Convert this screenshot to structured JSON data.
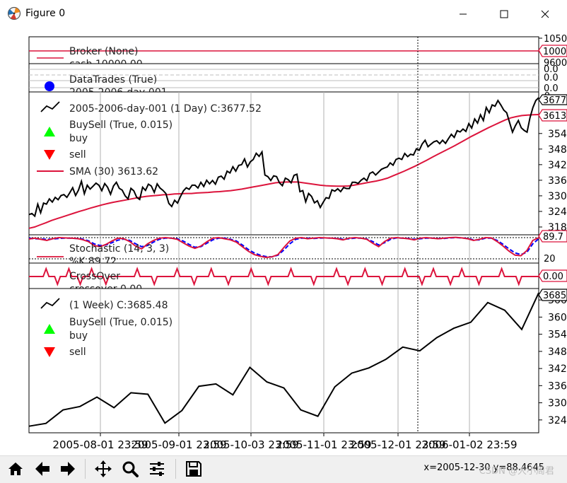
{
  "window": {
    "title": "Figure 0",
    "minimize_icon": "minimize-icon",
    "maximize_icon": "maximize-icon",
    "close_icon": "close-icon",
    "app_icon": "matplotlib-icon"
  },
  "toolbar": {
    "buttons": [
      {
        "name": "home-button",
        "icon": "home-icon"
      },
      {
        "name": "back-button",
        "icon": "arrow-left-icon"
      },
      {
        "name": "forward-button",
        "icon": "arrow-right-icon"
      },
      {
        "name": "pan-button",
        "icon": "move-icon"
      },
      {
        "name": "zoom-button",
        "icon": "magnifier-icon"
      },
      {
        "name": "configure-subplots-button",
        "icon": "sliders-icon"
      },
      {
        "name": "save-button",
        "icon": "floppy-disk-icon"
      }
    ],
    "coords": "x=2005-12-30  y=88.4645",
    "watermark": "CSDN @大小周君"
  },
  "x_axis": {
    "tick_labels": [
      "2005-08-01 23:59",
      "2005-09-01 23:59",
      "2005-10-03 23:59",
      "2005-11-01 23:59",
      "2005-12-01 23:59",
      "2006-01-02 23:59"
    ],
    "cursor_date": "2005-12-30"
  },
  "colors": {
    "price": "#000000",
    "sma": "#dc143c",
    "stoch_k": "#dc143c",
    "stoch_d": "#0000ff",
    "crossover": "#dc143c",
    "buy_marker": "#00ff00",
    "sell_marker": "#ff0000",
    "trades_marker": "#0000ff",
    "grid": "#b0b0b0"
  },
  "chart_data": [
    {
      "type": "line",
      "panel": "broker",
      "legend": [
        "Broker (None)",
        "cash 10000.00"
      ],
      "series": [
        {
          "name": "cash",
          "values_constant": 10000.0
        }
      ],
      "right_label": "10000",
      "y_tick_labels": [
        "1050",
        "9600"
      ]
    },
    {
      "type": "scatter",
      "panel": "trades",
      "legend": [
        "DataTrades (True)",
        "2005-2006-day-001"
      ],
      "right_tick_labels": [
        "0.0",
        "0.0",
        "0.0",
        "-0"
      ]
    },
    {
      "type": "line",
      "panel": "price_day",
      "legend_price": "2005-2006-day-001 (1 Day) C:3677.52",
      "legend_buysell": "BuySell (True, 0.015)",
      "legend_buy": "buy",
      "legend_sell": "sell",
      "legend_sma": "SMA (30) 3613.62",
      "last_price_label": "3677",
      "last_sma_label": "3613",
      "y_tick_labels": [
        "354",
        "348",
        "342",
        "336",
        "330",
        "324",
        "318"
      ],
      "ylim": [
        3150,
        3700
      ],
      "price_values": [
        3228,
        3232,
        3222,
        3268,
        3235,
        3272,
        3268,
        3288,
        3276,
        3294,
        3285,
        3301,
        3305,
        3294,
        3312,
        3331,
        3301,
        3322,
        3356,
        3308,
        3341,
        3326,
        3337,
        3349,
        3341,
        3320,
        3347,
        3333,
        3306,
        3338,
        3352,
        3329,
        3322,
        3300,
        3288,
        3329,
        3319,
        3294,
        3286,
        3333,
        3321,
        3345,
        3338,
        3313,
        3346,
        3330,
        3321,
        3309,
        3271,
        3259,
        3283,
        3272,
        3297,
        3319,
        3331,
        3325,
        3341,
        3341,
        3330,
        3352,
        3336,
        3360,
        3346,
        3359,
        3345,
        3372,
        3376,
        3364,
        3395,
        3388,
        3412,
        3395,
        3417,
        3420,
        3442,
        3411,
        3431,
        3440,
        3464,
        3452,
        3469,
        3380,
        3374,
        3359,
        3377,
        3374,
        3350,
        3339,
        3368,
        3362,
        3350,
        3379,
        3383,
        3316,
        3320,
        3277,
        3309,
        3298,
        3273,
        3281,
        3255,
        3275,
        3293,
        3290,
        3323,
        3318,
        3327,
        3316,
        3332,
        3328,
        3328,
        3352,
        3352,
        3348,
        3360,
        3368,
        3358,
        3386,
        3392,
        3380,
        3391,
        3402,
        3407,
        3411,
        3427,
        3418,
        3440,
        3445,
        3440,
        3463,
        3451,
        3460,
        3457,
        3481,
        3476,
        3500,
        3514,
        3489,
        3499,
        3508,
        3512,
        3501,
        3514,
        3502,
        3520,
        3537,
        3525,
        3551,
        3546,
        3557,
        3548,
        3578,
        3561,
        3596,
        3580,
        3612,
        3590,
        3640,
        3620,
        3650,
        3645,
        3667,
        3650,
        3630,
        3620,
        3582,
        3545,
        3570,
        3590,
        3562,
        3552,
        3545,
        3600,
        3640,
        3667,
        3678
      ],
      "sma_values": [
        3175,
        3180,
        3188,
        3196,
        3205,
        3212,
        3219,
        3226,
        3233,
        3240,
        3246,
        3253,
        3259,
        3265,
        3270,
        3275,
        3279,
        3283,
        3287,
        3291,
        3295,
        3298,
        3300,
        3302,
        3304,
        3305,
        3307,
        3308,
        3309,
        3309,
        3311,
        3312,
        3313,
        3315,
        3316,
        3318,
        3320,
        3323,
        3326,
        3330,
        3334,
        3338,
        3342,
        3346,
        3350,
        3352,
        3353,
        3353,
        3353,
        3350,
        3347,
        3344,
        3341,
        3339,
        3338,
        3337,
        3337,
        3338,
        3341,
        3345,
        3349,
        3353,
        3357,
        3362,
        3368,
        3377,
        3386,
        3395,
        3405,
        3415,
        3426,
        3437,
        3449,
        3460,
        3471,
        3482,
        3493,
        3505,
        3517,
        3529,
        3540,
        3551,
        3562,
        3572,
        3582,
        3592,
        3600,
        3605,
        3609,
        3611,
        3612,
        3613
      ]
    },
    {
      "type": "line",
      "panel": "stochastic",
      "legend": [
        "Stochastic (14, 3, 3)",
        "%K 89.72"
      ],
      "right_label": "89.7",
      "y_tick_labels": [
        "20"
      ],
      "ylim": [
        0,
        100
      ],
      "k_values": [
        85,
        88,
        84,
        80,
        86,
        90,
        89,
        88,
        87,
        83,
        76,
        62,
        58,
        66,
        78,
        88,
        86,
        76,
        60,
        50,
        68,
        80,
        88,
        90,
        88,
        84,
        72,
        60,
        52,
        60,
        75,
        88,
        90,
        86,
        82,
        74,
        58,
        42,
        30,
        24,
        20,
        22,
        30,
        55,
        78,
        88,
        90,
        86,
        88,
        90,
        89,
        88,
        86,
        82,
        88,
        90,
        88,
        84,
        70,
        58,
        76,
        88,
        90,
        88,
        86,
        82,
        88,
        90,
        88,
        86,
        88,
        90,
        91,
        89,
        86,
        80,
        84,
        90,
        89,
        76,
        60,
        42,
        28,
        26,
        44,
        80,
        89.72
      ],
      "d_values": [
        88,
        86,
        85,
        84,
        85,
        87,
        88,
        88,
        87,
        85,
        79,
        68,
        62,
        64,
        72,
        81,
        85,
        80,
        68,
        58,
        62,
        74,
        84,
        88,
        88,
        86,
        78,
        66,
        56,
        58,
        70,
        82,
        88,
        88,
        84,
        78,
        64,
        48,
        36,
        28,
        23,
        22,
        28,
        46,
        68,
        84,
        88,
        88,
        87,
        88,
        89,
        88,
        87,
        84,
        86,
        88,
        88,
        85,
        76,
        64,
        72,
        84,
        89,
        88,
        87,
        84,
        86,
        88,
        88,
        87,
        87,
        89,
        90,
        89,
        87,
        82,
        82,
        88,
        88,
        80,
        66,
        50,
        36,
        30,
        38,
        68,
        86
      ]
    },
    {
      "type": "line",
      "panel": "crossover",
      "legend": [
        "CrossOver",
        "crossover 0.00"
      ],
      "right_label": "0.00",
      "ylim": [
        -1.2,
        1.2
      ]
    },
    {
      "type": "line",
      "panel": "price_week",
      "legend_price": " (1 Week) C:3685.48",
      "legend_buysell": "BuySell (True, 0.015)",
      "legend_buy": "buy",
      "legend_sell": "sell",
      "last_price_label": "3685",
      "y_tick_labels": [
        "366",
        "360",
        "354",
        "348",
        "342",
        "336",
        "330",
        "324"
      ],
      "ylim": [
        3195,
        3700
      ],
      "values": [
        3218,
        3228,
        3275,
        3287,
        3320,
        3283,
        3335,
        3330,
        3229,
        3273,
        3358,
        3366,
        3328,
        3424,
        3373,
        3352,
        3275,
        3253,
        3356,
        3404,
        3422,
        3452,
        3495,
        3482,
        3528,
        3561,
        3582,
        3651,
        3624,
        3557,
        3685
      ]
    }
  ]
}
